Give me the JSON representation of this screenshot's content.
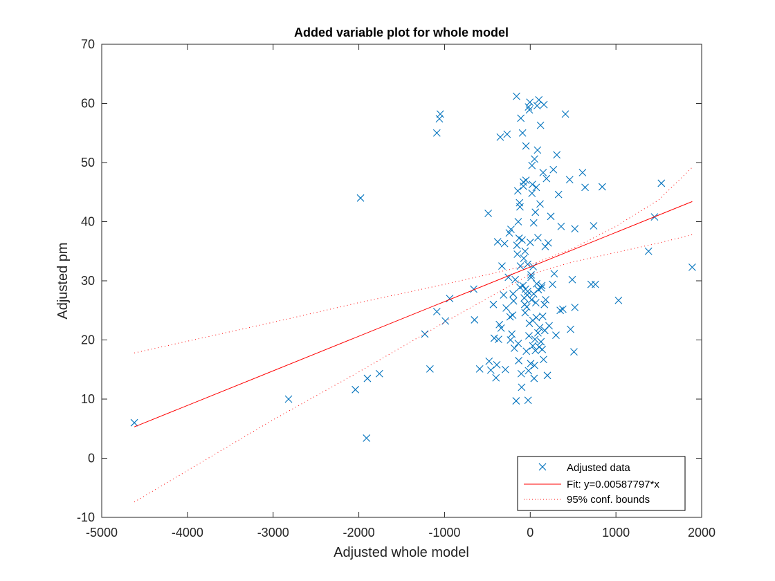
{
  "chart_data": {
    "type": "scatter",
    "title": "Added variable plot for whole model",
    "xlabel": "Adjusted whole model",
    "ylabel": "Adjusted pm",
    "xlim": [
      -5000,
      2000
    ],
    "ylim": [
      -10,
      70
    ],
    "xticks": [
      -5000,
      -4000,
      -3000,
      -2000,
      -1000,
      0,
      1000,
      2000
    ],
    "yticks": [
      -10,
      0,
      10,
      20,
      30,
      40,
      50,
      60,
      70
    ],
    "grid": false,
    "legend_position": "bottom-right",
    "legend": [
      {
        "label": "Adjusted data",
        "style": "marker-x",
        "color": "#0072BD"
      },
      {
        "label": "Fit: y=0.00587797*x",
        "style": "solid",
        "color": "#FF0000"
      },
      {
        "label": "95% conf. bounds",
        "style": "dotted",
        "color": "#FF0000"
      }
    ],
    "series": [
      {
        "name": "Adjusted data",
        "kind": "scatter",
        "marker": "x",
        "color": "#0072BD",
        "points": [
          [
            -4620,
            6.0
          ],
          [
            -2820,
            10.0
          ],
          [
            -2040,
            11.6
          ],
          [
            -1980,
            44.0
          ],
          [
            -1900,
            13.5
          ],
          [
            -1910,
            3.4
          ],
          [
            -1760,
            14.3
          ],
          [
            -1230,
            21.0
          ],
          [
            -1170,
            15.1
          ],
          [
            -1090,
            24.8
          ],
          [
            -1090,
            55.0
          ],
          [
            -1060,
            57.4
          ],
          [
            -1050,
            58.2
          ],
          [
            -990,
            23.2
          ],
          [
            -940,
            27.0
          ],
          [
            -660,
            28.6
          ],
          [
            -650,
            23.4
          ],
          [
            -590,
            15.1
          ],
          [
            -490,
            41.4
          ],
          [
            -480,
            16.4
          ],
          [
            -460,
            14.9
          ],
          [
            -430,
            26.0
          ],
          [
            -420,
            20.3
          ],
          [
            -400,
            13.6
          ],
          [
            -390,
            15.8
          ],
          [
            -380,
            36.6
          ],
          [
            -370,
            20.1
          ],
          [
            -360,
            22.6
          ],
          [
            -350,
            54.3
          ],
          [
            -340,
            22.0
          ],
          [
            -330,
            32.5
          ],
          [
            -310,
            27.6
          ],
          [
            -300,
            36.3
          ],
          [
            -290,
            15.0
          ],
          [
            -280,
            25.4
          ],
          [
            -270,
            54.8
          ],
          [
            -255,
            30.6
          ],
          [
            -245,
            38.1
          ],
          [
            -235,
            23.9
          ],
          [
            -225,
            38.7
          ],
          [
            -215,
            21.0
          ],
          [
            -205,
            24.2
          ],
          [
            -195,
            26.6
          ],
          [
            -185,
            18.6
          ],
          [
            -175,
            30.2
          ],
          [
            -165,
            9.7
          ],
          [
            -160,
            61.2
          ],
          [
            -155,
            36.0
          ],
          [
            -150,
            34.5
          ],
          [
            -145,
            45.2
          ],
          [
            -140,
            19.4
          ],
          [
            -135,
            16.5
          ],
          [
            -130,
            37.2
          ],
          [
            -125,
            43.2
          ],
          [
            -120,
            28.9
          ],
          [
            -115,
            32.5
          ],
          [
            -110,
            57.5
          ],
          [
            -105,
            14.3
          ],
          [
            -100,
            12.0
          ],
          [
            -95,
            36.9
          ],
          [
            -90,
            55.0
          ],
          [
            -85,
            29.2
          ],
          [
            -80,
            46.7
          ],
          [
            -75,
            33.8
          ],
          [
            -70,
            27.1
          ],
          [
            -65,
            26.0
          ],
          [
            -60,
            24.6
          ],
          [
            -55,
            28.6
          ],
          [
            -50,
            52.8
          ],
          [
            -45,
            18.1
          ],
          [
            -40,
            25.6
          ],
          [
            -35,
            27.6
          ],
          [
            -30,
            28.2
          ],
          [
            -25,
            9.8
          ],
          [
            -20,
            14.8
          ],
          [
            -15,
            20.7
          ],
          [
            -10,
            58.9
          ],
          [
            -5,
            60.2
          ],
          [
            0,
            36.5
          ],
          [
            5,
            16.0
          ],
          [
            10,
            30.6
          ],
          [
            15,
            26.8
          ],
          [
            20,
            44.8
          ],
          [
            25,
            46.3
          ],
          [
            30,
            23.3
          ],
          [
            35,
            32.4
          ],
          [
            40,
            39.8
          ],
          [
            45,
            13.5
          ],
          [
            50,
            15.7
          ],
          [
            55,
            20.1
          ],
          [
            60,
            41.6
          ],
          [
            65,
            26.3
          ],
          [
            70,
            45.8
          ],
          [
            75,
            29.5
          ],
          [
            80,
            59.6
          ],
          [
            85,
            52.1
          ],
          [
            90,
            37.3
          ],
          [
            95,
            28.5
          ],
          [
            100,
            60.6
          ],
          [
            105,
            18.8
          ],
          [
            110,
            22.1
          ],
          [
            115,
            43.0
          ],
          [
            120,
            56.3
          ],
          [
            125,
            19.7
          ],
          [
            130,
            28.8
          ],
          [
            135,
            29.2
          ],
          [
            140,
            18.4
          ],
          [
            145,
            24.0
          ],
          [
            150,
            48.3
          ],
          [
            155,
            16.7
          ],
          [
            160,
            59.8
          ],
          [
            165,
            26.0
          ],
          [
            170,
            21.6
          ],
          [
            175,
            35.8
          ],
          [
            180,
            26.8
          ],
          [
            190,
            47.3
          ],
          [
            200,
            14.0
          ],
          [
            210,
            36.4
          ],
          [
            220,
            22.4
          ],
          [
            240,
            40.9
          ],
          [
            260,
            29.4
          ],
          [
            270,
            48.8
          ],
          [
            280,
            31.2
          ],
          [
            300,
            20.8
          ],
          [
            310,
            51.3
          ],
          [
            330,
            44.6
          ],
          [
            350,
            25.0
          ],
          [
            360,
            39.2
          ],
          [
            380,
            25.2
          ],
          [
            410,
            58.2
          ],
          [
            460,
            47.1
          ],
          [
            470,
            21.8
          ],
          [
            490,
            30.2
          ],
          [
            510,
            18.0
          ],
          [
            520,
            25.5
          ],
          [
            520,
            38.8
          ],
          [
            610,
            48.3
          ],
          [
            640,
            45.8
          ],
          [
            710,
            29.4
          ],
          [
            740,
            39.3
          ],
          [
            760,
            29.4
          ],
          [
            840,
            45.9
          ],
          [
            1030,
            26.7
          ],
          [
            1380,
            35.0
          ],
          [
            1450,
            40.8
          ],
          [
            1530,
            46.5
          ],
          [
            1890,
            32.3
          ],
          [
            -120,
            42.5
          ],
          [
            -60,
            35.0
          ],
          [
            -30,
            32.8
          ],
          [
            10,
            31.0
          ],
          [
            40,
            27.8
          ],
          [
            70,
            23.8
          ],
          [
            -200,
            27.8
          ],
          [
            -230,
            20.0
          ],
          [
            -10,
            22.8
          ],
          [
            30,
            19.0
          ],
          [
            60,
            18.2
          ],
          [
            90,
            21.2
          ],
          [
            -140,
            40.0
          ],
          [
            -80,
            46.0
          ],
          [
            -50,
            47.0
          ],
          [
            20,
            49.5
          ],
          [
            50,
            50.6
          ],
          [
            -20,
            59.4
          ]
        ]
      },
      {
        "name": "Fit: y=0.00587797*x",
        "kind": "line",
        "style": "solid",
        "color": "#FF0000",
        "points": [
          [
            -4620,
            5.3
          ],
          [
            1890,
            43.4
          ]
        ]
      },
      {
        "name": "95% conf. bounds",
        "kind": "line",
        "style": "dotted",
        "color": "#FF0000",
        "points": [
          [
            -4620,
            17.8
          ],
          [
            -3000,
            23.0
          ],
          [
            -2000,
            26.3
          ],
          [
            -1000,
            29.4
          ],
          [
            0,
            32.7
          ],
          [
            500,
            35.5
          ],
          [
            1000,
            39.2
          ],
          [
            1500,
            43.7
          ],
          [
            1890,
            49.2
          ]
        ]
      },
      {
        "name": "95% conf. bounds",
        "kind": "line",
        "style": "dotted",
        "color": "#FF0000",
        "points": [
          [
            -4620,
            -7.4
          ],
          [
            -3000,
            6.5
          ],
          [
            -2000,
            14.6
          ],
          [
            -1000,
            23.0
          ],
          [
            0,
            31.1
          ],
          [
            500,
            33.2
          ],
          [
            1000,
            34.8
          ],
          [
            1500,
            36.4
          ],
          [
            1890,
            37.8
          ]
        ]
      }
    ]
  }
}
